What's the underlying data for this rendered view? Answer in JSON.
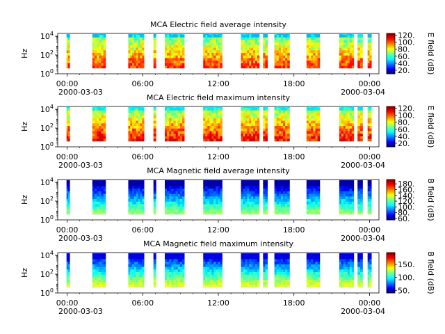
{
  "figure": {
    "x_axis": {
      "tick_labels": [
        "00:00",
        "06:00",
        "12:00",
        "18:00",
        "00:00"
      ],
      "start_date": "2000-03-03",
      "end_date": "2000-03-04",
      "range_hours": [
        -0.75,
        24.75
      ]
    },
    "y_axis": {
      "label": "Hz",
      "scale": "log",
      "tick_labels": [
        {
          "base": "10",
          "exp": "0"
        },
        {
          "base": "10",
          "exp": "2"
        },
        {
          "base": "10",
          "exp": "4"
        }
      ],
      "range": [
        1,
        20000
      ]
    }
  },
  "chart_data": [
    {
      "type": "heatmap",
      "title": "MCA  Electric field average intensity",
      "colorbar_label": "E field (dB)",
      "colorbar_ticks": [
        "20.",
        "40.",
        "60.",
        "80.",
        "100.",
        "120."
      ],
      "colorbar_range": [
        10,
        125
      ],
      "data_intervals_hours": [
        [
          -0.05,
          0.2
        ],
        [
          2.0,
          3.05
        ],
        [
          4.85,
          6.1
        ],
        [
          6.85,
          7.05
        ],
        [
          7.75,
          9.3
        ],
        [
          10.8,
          12.3
        ],
        [
          13.8,
          15.25
        ],
        [
          15.55,
          15.9
        ],
        [
          16.45,
          17.65
        ],
        [
          19.0,
          20.05
        ],
        [
          21.6,
          22.75
        ],
        [
          23.05,
          23.45
        ],
        [
          23.85,
          24.15
        ]
      ],
      "intensity_range_db": [
        45,
        110
      ]
    },
    {
      "type": "heatmap",
      "title": "MCA  Electric field maximum intensity",
      "colorbar_label": "E field (dB)",
      "colorbar_ticks": [
        "20.",
        "40.",
        "60.",
        "80.",
        "100.",
        "120."
      ],
      "colorbar_range": [
        10,
        125
      ],
      "data_intervals_hours": [
        [
          -0.05,
          0.2
        ],
        [
          2.0,
          3.05
        ],
        [
          4.85,
          6.1
        ],
        [
          6.85,
          7.05
        ],
        [
          7.75,
          9.3
        ],
        [
          10.8,
          12.3
        ],
        [
          13.8,
          15.25
        ],
        [
          15.55,
          15.9
        ],
        [
          16.45,
          17.65
        ],
        [
          19.0,
          20.05
        ],
        [
          21.6,
          22.75
        ],
        [
          23.05,
          23.45
        ],
        [
          23.85,
          24.15
        ]
      ],
      "intensity_range_db": [
        50,
        115
      ]
    },
    {
      "type": "heatmap",
      "title": "MCA  Magnetic field average intensity",
      "colorbar_label": "B field (dB)",
      "colorbar_ticks": [
        "60.",
        "80.",
        "100.",
        "120.",
        "140.",
        "160.",
        "180."
      ],
      "colorbar_range": [
        55,
        195
      ],
      "data_intervals_hours": [
        [
          -0.05,
          0.2
        ],
        [
          2.0,
          3.05
        ],
        [
          4.85,
          6.1
        ],
        [
          6.85,
          7.05
        ],
        [
          7.75,
          9.3
        ],
        [
          10.8,
          12.3
        ],
        [
          13.8,
          15.25
        ],
        [
          15.55,
          15.9
        ],
        [
          16.45,
          17.65
        ],
        [
          19.0,
          20.05
        ],
        [
          21.6,
          22.75
        ],
        [
          23.05,
          23.45
        ],
        [
          23.85,
          24.15
        ]
      ],
      "intensity_range_db": [
        60,
        130
      ]
    },
    {
      "type": "heatmap",
      "title": "MCA  Magnetic field maximum intensity",
      "colorbar_label": "B field (dB)",
      "colorbar_ticks": [
        "50.",
        "100.",
        "150."
      ],
      "colorbar_range": [
        40,
        195
      ],
      "data_intervals_hours": [
        [
          -0.05,
          0.2
        ],
        [
          2.0,
          3.05
        ],
        [
          4.85,
          6.1
        ],
        [
          6.85,
          7.05
        ],
        [
          7.75,
          9.3
        ],
        [
          10.8,
          12.3
        ],
        [
          13.8,
          15.25
        ],
        [
          15.55,
          15.9
        ],
        [
          16.45,
          17.65
        ],
        [
          19.0,
          20.05
        ],
        [
          21.6,
          22.75
        ],
        [
          23.05,
          23.45
        ],
        [
          23.85,
          24.15
        ]
      ],
      "intensity_range_db": [
        55,
        135
      ]
    }
  ]
}
